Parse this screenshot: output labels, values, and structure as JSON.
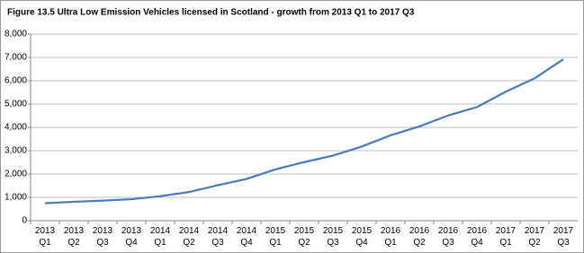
{
  "chart_data": {
    "type": "line",
    "title": "Figure 13.5 Ultra Low Emission Vehicles licensed in Scotland - growth from 2013 Q1 to 2017 Q3",
    "categories": [
      "2013\nQ1",
      "2013\nQ2",
      "2013\nQ3",
      "2013\nQ4",
      "2014\nQ1",
      "2014\nQ2",
      "2014\nQ3",
      "2014\nQ4",
      "2015\nQ1",
      "2015\nQ2",
      "2015\nQ3",
      "2015\nQ4",
      "2016\nQ1",
      "2016\nQ2",
      "2016\nQ3",
      "2016\nQ4",
      "2017\nQ1",
      "2017\nQ2",
      "2017\nQ3"
    ],
    "values": [
      750,
      810,
      860,
      920,
      1050,
      1230,
      1520,
      1790,
      2200,
      2510,
      2790,
      3180,
      3660,
      4040,
      4510,
      4870,
      5530,
      6100,
      6920
    ],
    "color": "#4a7ab7",
    "ylim": [
      0,
      8000
    ],
    "yticks": [
      0,
      {
        "value": 1000,
        "label": "1,000"
      },
      {
        "value": 2000,
        "label": "2,000"
      },
      {
        "value": 3000,
        "label": "3,000"
      },
      {
        "value": 4000,
        "label": "4,000"
      },
      {
        "value": 5000,
        "label": "5,000"
      },
      {
        "value": 6000,
        "label": "6,000"
      },
      {
        "value": 7000,
        "label": "7,000"
      },
      {
        "value": 8000,
        "label": "8,000"
      }
    ],
    "grid": true
  }
}
